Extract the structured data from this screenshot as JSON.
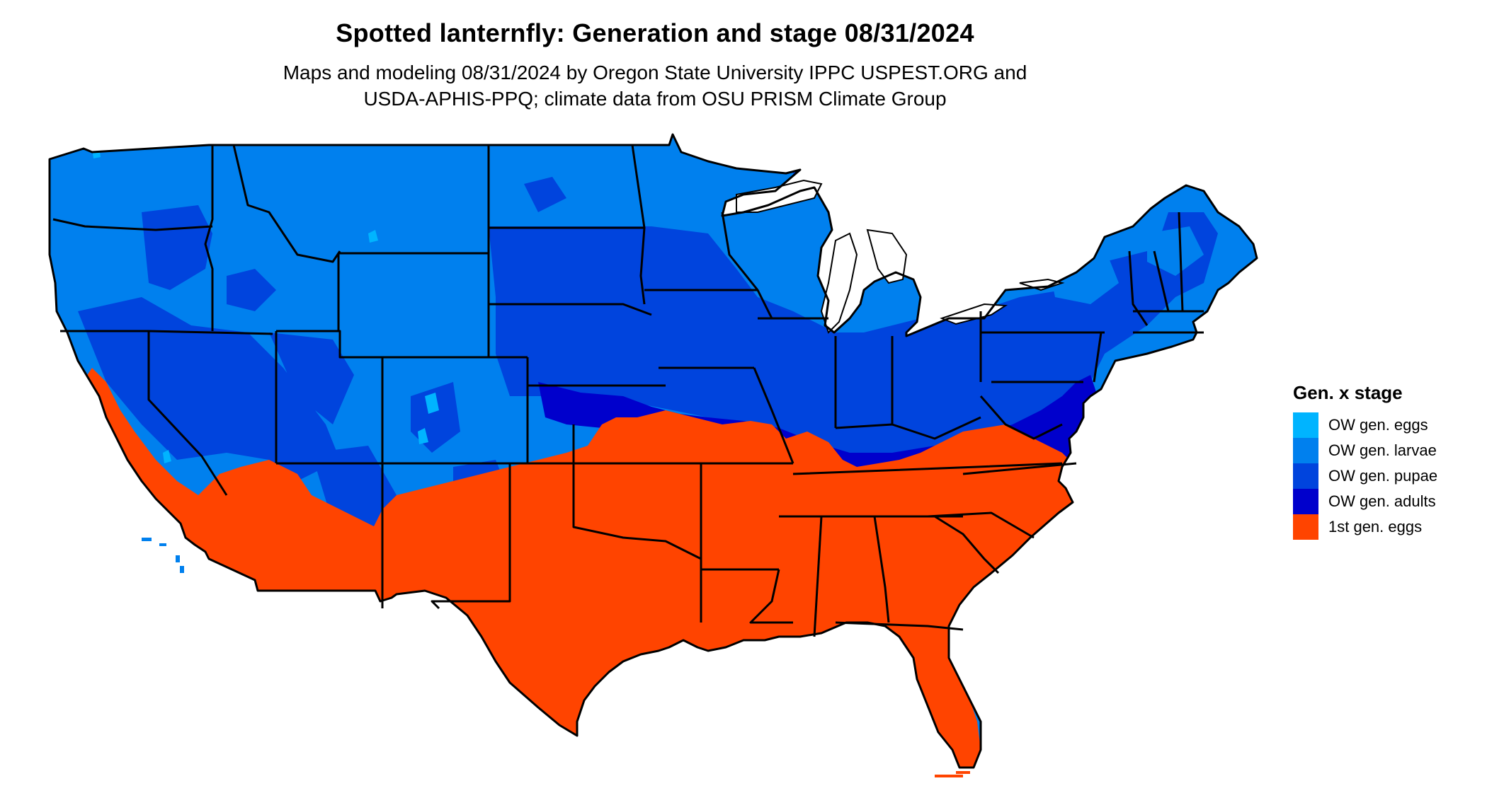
{
  "map": {
    "title_line": "Spotted lanternfly: Generation and stage 08/31/2024",
    "subtitle_lines": [
      "Maps and modeling 08/31/2024 by Oregon State University IPPC USPEST.ORG and",
      "USDA-APHIS-PPQ; climate data from OSU PRISM Climate Group"
    ],
    "region": "Contiguous United States",
    "date": "08/31/2024"
  },
  "legend": {
    "title": "Gen. x stage",
    "items": [
      {
        "label": "OW gen. eggs",
        "color": "#00b4ff"
      },
      {
        "label": "OW gen. larvae",
        "color": "#0080ee"
      },
      {
        "label": "OW gen. pupae",
        "color": "#0044dd"
      },
      {
        "label": "OW gen. adults",
        "color": "#0000cc"
      },
      {
        "label": "1st gen. eggs",
        "color": "#ff4400"
      }
    ]
  },
  "colors": {
    "border": "#000000",
    "background": "#ffffff",
    "water": "#ffffff"
  }
}
